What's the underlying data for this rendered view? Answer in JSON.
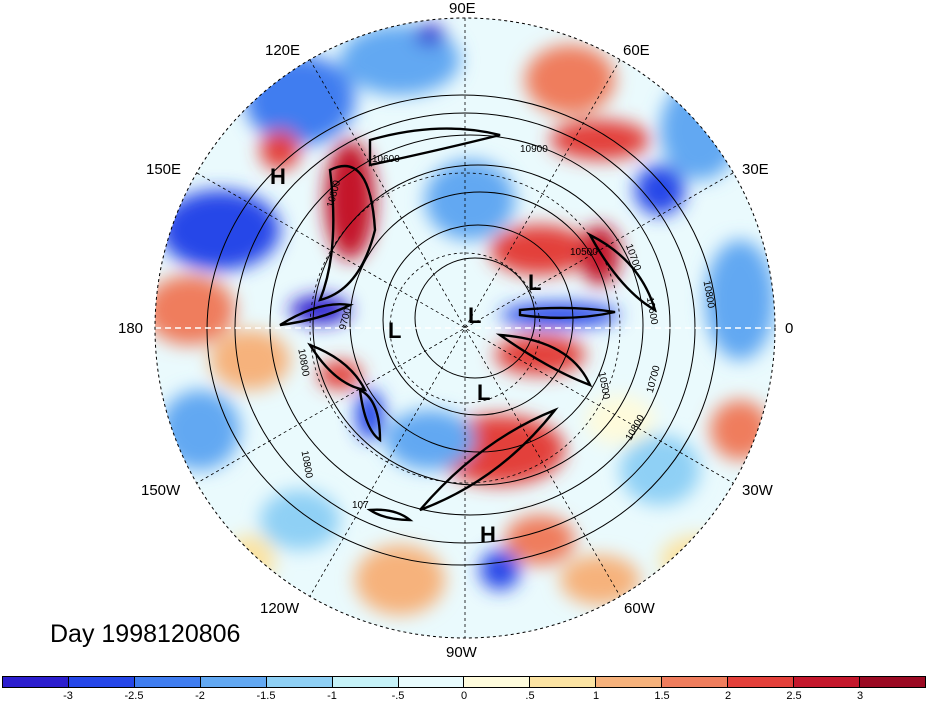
{
  "longitude_labels": {
    "e90": "90E",
    "e60": "60E",
    "e30": "30E",
    "e120": "120E",
    "e150": "150E",
    "d180": "180",
    "d0": "0",
    "w150": "150W",
    "w120": "120W",
    "w90": "90W",
    "w60": "60W",
    "w30": "30W"
  },
  "pressure_centers": [
    {
      "name": "H",
      "kind": "high"
    },
    {
      "name": "H",
      "kind": "high"
    },
    {
      "name": "L",
      "kind": "low"
    },
    {
      "name": "L",
      "kind": "low"
    },
    {
      "name": "L",
      "kind": "low"
    },
    {
      "name": "L",
      "kind": "low"
    }
  ],
  "contour_labels": [
    "10900",
    "10600",
    "10800",
    "10700",
    "10800",
    "10500",
    "10700",
    "10800",
    "10600",
    "10800",
    "10800",
    "107",
    "9700",
    "10500"
  ],
  "day_label": "Day 1998120806",
  "colorbar": {
    "ticks": [
      "-3",
      "-2.5",
      "-2",
      "-1.5",
      "-1",
      "-.5",
      "0",
      ".5",
      "1",
      "1.5",
      "2",
      "2.5",
      "3"
    ],
    "colors": [
      "#2c1ecf",
      "#2546e8",
      "#3f7df0",
      "#62a8f2",
      "#8fd0f5",
      "#c6f2f8",
      "#e8fbfd",
      "#fefbdc",
      "#fbe3a3",
      "#f6b27c",
      "#ef7d5d",
      "#e3403a",
      "#c4172c",
      "#9b0a23"
    ]
  }
}
